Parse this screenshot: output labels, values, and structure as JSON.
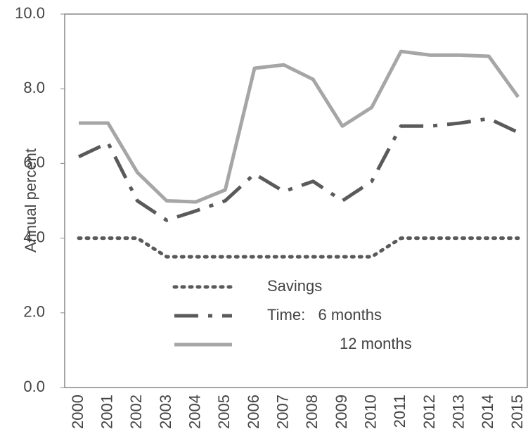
{
  "chart_data": {
    "type": "line",
    "y_label": "Annual percent",
    "categories": [
      "2000",
      "2001",
      "2002",
      "2003",
      "2004",
      "2005",
      "2006",
      "2007",
      "2008",
      "2009",
      "2010",
      "2011",
      "2012",
      "2013",
      "2014",
      "2015"
    ],
    "series": [
      {
        "name": "Savings",
        "color": "#5a5a5a",
        "style": "dotted",
        "values": [
          4.0,
          4.0,
          4.0,
          3.5,
          3.5,
          3.5,
          3.5,
          3.5,
          3.5,
          3.5,
          3.5,
          4.0,
          4.0,
          4.0,
          4.0,
          4.0
        ]
      },
      {
        "name": "Time:   6 months",
        "color": "#5a5a5a",
        "style": "dashdot",
        "values": [
          6.18,
          6.55,
          5.0,
          4.48,
          4.73,
          5.0,
          5.72,
          5.25,
          5.52,
          5.0,
          5.52,
          7.0,
          7.0,
          7.08,
          7.2,
          6.83
        ]
      },
      {
        "name": "12 months",
        "color": "#a6a6a6",
        "style": "solid",
        "values": [
          7.08,
          7.08,
          5.76,
          5.0,
          4.97,
          5.29,
          8.55,
          8.64,
          8.25,
          7.0,
          7.5,
          9.0,
          8.9,
          8.9,
          8.87,
          7.78
        ]
      }
    ],
    "ylim": [
      0,
      10
    ],
    "yticks": [
      {
        "value": 0,
        "label": "0.0"
      },
      {
        "value": 2,
        "label": "2.0"
      },
      {
        "value": 4,
        "label": "4.0"
      },
      {
        "value": 6,
        "label": "6.0"
      },
      {
        "value": 8,
        "label": "8.0"
      },
      {
        "value": 10,
        "label": "10.0"
      }
    ],
    "grid": false
  }
}
